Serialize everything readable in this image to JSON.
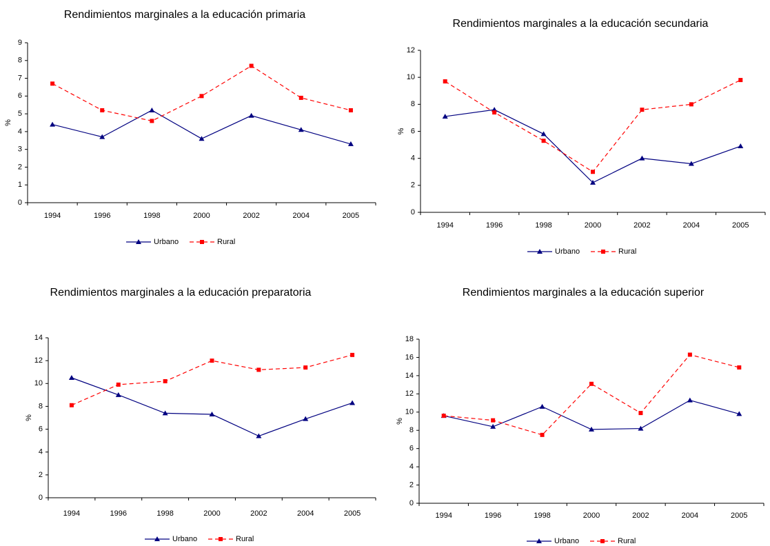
{
  "chart_data": [
    {
      "type": "line",
      "title": "Rendimientos marginales a la educación primaria",
      "ylabel": "%",
      "categories": [
        "1994",
        "1996",
        "1998",
        "2000",
        "2002",
        "2004",
        "2005"
      ],
      "series": [
        {
          "name": "Urbano",
          "color": "#000080",
          "line_style": "solid",
          "marker": "triangle",
          "values": [
            4.4,
            3.7,
            5.2,
            3.6,
            4.9,
            4.1,
            3.3
          ]
        },
        {
          "name": "Rural",
          "color": "#ff0000",
          "line_style": "dashed",
          "marker": "square",
          "values": [
            6.7,
            5.2,
            4.6,
            6.0,
            7.7,
            5.9,
            5.2
          ]
        }
      ],
      "ylim": [
        0,
        9
      ],
      "yticks": [
        0,
        1,
        2,
        3,
        4,
        5,
        6,
        7,
        8,
        9
      ],
      "grid": false
    },
    {
      "type": "line",
      "title": "Rendimientos marginales a la educación secundaria",
      "ylabel": "%",
      "categories": [
        "1994",
        "1996",
        "1998",
        "2000",
        "2002",
        "2004",
        "2005"
      ],
      "series": [
        {
          "name": "Urbano",
          "color": "#000080",
          "line_style": "solid",
          "marker": "triangle",
          "values": [
            7.1,
            7.6,
            5.8,
            2.2,
            4.0,
            3.6,
            4.9
          ]
        },
        {
          "name": "Rural",
          "color": "#ff0000",
          "line_style": "dashed",
          "marker": "square",
          "values": [
            9.7,
            7.4,
            5.3,
            3.0,
            7.6,
            8.0,
            9.8
          ]
        }
      ],
      "ylim": [
        0,
        12
      ],
      "yticks": [
        0,
        2,
        4,
        6,
        8,
        10,
        12
      ],
      "grid": false
    },
    {
      "type": "line",
      "title": "Rendimientos marginales a la educación preparatoria",
      "ylabel": "%",
      "categories": [
        "1994",
        "1996",
        "1998",
        "2000",
        "2002",
        "2004",
        "2005"
      ],
      "series": [
        {
          "name": "Urbano",
          "color": "#000080",
          "line_style": "solid",
          "marker": "triangle",
          "values": [
            10.5,
            9.0,
            7.4,
            7.3,
            5.4,
            6.9,
            8.3
          ]
        },
        {
          "name": "Rural",
          "color": "#ff0000",
          "line_style": "dashed",
          "marker": "square",
          "values": [
            8.1,
            9.9,
            10.2,
            12.0,
            11.2,
            11.4,
            12.5
          ]
        }
      ],
      "ylim": [
        0,
        14
      ],
      "yticks": [
        0,
        2,
        4,
        6,
        8,
        10,
        12,
        14
      ],
      "grid": false
    },
    {
      "type": "line",
      "title": "Rendimientos marginales a la educación superior",
      "ylabel": "%",
      "categories": [
        "1994",
        "1996",
        "1998",
        "2000",
        "2002",
        "2004",
        "2005"
      ],
      "series": [
        {
          "name": "Urbano",
          "color": "#000080",
          "line_style": "solid",
          "marker": "triangle",
          "values": [
            9.6,
            8.4,
            10.6,
            8.1,
            8.2,
            11.3,
            9.8
          ]
        },
        {
          "name": "Rural",
          "color": "#ff0000",
          "line_style": "dashed",
          "marker": "square",
          "values": [
            9.6,
            9.1,
            7.5,
            13.1,
            9.9,
            16.3,
            14.9
          ]
        }
      ],
      "ylim": [
        0,
        18
      ],
      "yticks": [
        0,
        2,
        4,
        6,
        8,
        10,
        12,
        14,
        16,
        18
      ],
      "grid": false
    }
  ]
}
